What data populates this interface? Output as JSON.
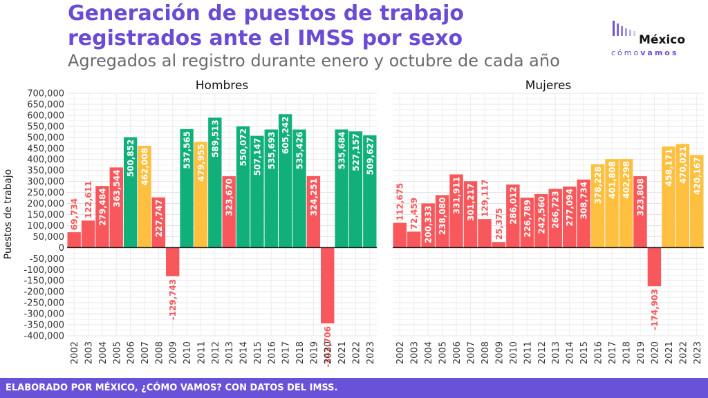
{
  "header": {
    "title": "Generación de puestos de trabajo registrados ante el IMSS por sexo",
    "subtitle": "Agregados al registro durante enero y octubre de cada año"
  },
  "logo": {
    "top": "México",
    "bottom_left": "cómo",
    "bottom_right": "vamos"
  },
  "footer": {
    "text": "ELABORADO POR MÉXICO, ¿CÓMO VAMOS? CON DATOS DEL IMSS."
  },
  "colors": {
    "negative": "#f8575b",
    "positive_high": "#11b07a",
    "positive_mid": "#ffbf3f",
    "accent": "#6a4bd6"
  },
  "chart_data": {
    "type": "bar",
    "ylabel": "Puestos de trabajo",
    "ylim": [
      -400000,
      700000
    ],
    "yticks": [
      700000,
      650000,
      600000,
      550000,
      500000,
      450000,
      400000,
      350000,
      300000,
      250000,
      200000,
      150000,
      100000,
      50000,
      0,
      -50000,
      -100000,
      -150000,
      -200000,
      -250000,
      -300000,
      -350000,
      -400000
    ],
    "ytick_labels": [
      "700,000",
      "650,000",
      "600,000",
      "550,000",
      "500,000",
      "450,000",
      "400,000",
      "350,000",
      "300,000",
      "250,000",
      "200,000",
      "150,000",
      "100,000",
      "50,000",
      "0",
      "-50,000",
      "-100,000",
      "-150,000",
      "-200,000",
      "-250,000",
      "-300,000",
      "-350,000",
      "-400,000"
    ],
    "categories": [
      "2002",
      "2003",
      "2004",
      "2005",
      "2006",
      "2007",
      "2008",
      "2009",
      "2010",
      "2011",
      "2012",
      "2013",
      "2014",
      "2015",
      "2016",
      "2017",
      "2018",
      "2019",
      "2020",
      "2021",
      "2022",
      "2023"
    ],
    "panels": [
      {
        "name": "Hombres",
        "values": [
          69734,
          122611,
          279484,
          363544,
          500852,
          462008,
          227747,
          -129743,
          537565,
          479955,
          589513,
          323670,
          550072,
          507147,
          535693,
          605242,
          535426,
          324251,
          -343706,
          535684,
          527157,
          509627
        ],
        "labels": [
          "69,734",
          "122,611",
          "279,484",
          "363,544",
          "500,852",
          "462,008",
          "227,747",
          "-129,743",
          "537,565",
          "479,955",
          "589,513",
          "323,670",
          "550,072",
          "507,147",
          "535,693",
          "605,242",
          "535,426",
          "324,251",
          "-343,706",
          "535,684",
          "527,157",
          "509,627"
        ],
        "colors": [
          "negative",
          "negative",
          "negative",
          "negative",
          "positive_high",
          "positive_mid",
          "negative",
          "negative",
          "positive_high",
          "positive_mid",
          "positive_high",
          "negative",
          "positive_high",
          "positive_high",
          "positive_high",
          "positive_high",
          "positive_high",
          "negative",
          "negative",
          "positive_high",
          "positive_high",
          "positive_high"
        ]
      },
      {
        "name": "Mujeres",
        "values": [
          112675,
          72459,
          200333,
          238080,
          331911,
          301217,
          129117,
          25375,
          286012,
          226789,
          242560,
          266723,
          277094,
          308734,
          378228,
          401808,
          402298,
          323808,
          -174903,
          458171,
          470021,
          420167
        ],
        "labels": [
          "112,675",
          "72,459",
          "200,333",
          "238,080",
          "331,911",
          "301,217",
          "129,117",
          "25,375",
          "286,012",
          "226,789",
          "242,560",
          "266,723",
          "277,094",
          "308,734",
          "378,228",
          "401,808",
          "402,298",
          "323,808",
          "-174,903",
          "458,171",
          "470,021",
          "420,167"
        ],
        "colors": [
          "negative",
          "negative",
          "negative",
          "negative",
          "negative",
          "negative",
          "negative",
          "negative",
          "negative",
          "negative",
          "negative",
          "negative",
          "negative",
          "negative",
          "positive_mid",
          "positive_mid",
          "positive_mid",
          "negative",
          "negative",
          "positive_mid",
          "positive_mid",
          "positive_mid"
        ]
      }
    ]
  }
}
